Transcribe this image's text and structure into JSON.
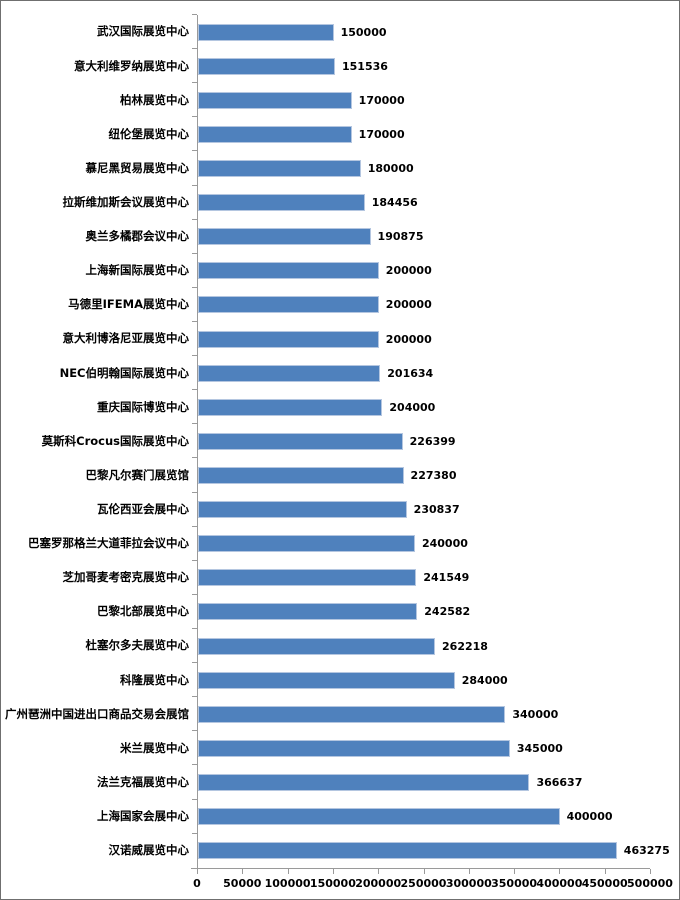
{
  "chart_data": {
    "type": "bar",
    "orientation": "horizontal",
    "title": "",
    "xlabel": "",
    "ylabel": "",
    "xlim": [
      0,
      500000
    ],
    "grid": false,
    "legend": false,
    "bar_color": "#4f81bd",
    "bar_border_color": "#b4c6e0",
    "axis_color": "#9a9a9a",
    "categories": [
      "武汉国际展览中心",
      "意大利维罗纳展览中心",
      "柏林展览中心",
      "纽伦堡展览中心",
      "慕尼黑贸易展览中心",
      "拉斯维加斯会议展览中心",
      "奥兰多橘郡会议中心",
      "上海新国际展览中心",
      "马德里IFEMA展览中心",
      "意大利博洛尼亚展览中心",
      "NEC伯明翰国际展览中心",
      "重庆国际博览中心",
      "莫斯科Crocus国际展览中心",
      "巴黎凡尔赛门展览馆",
      "瓦伦西亚会展中心",
      "巴塞罗那格兰大道菲拉会议中心",
      "芝加哥麦考密克展览中心",
      "巴黎北部展览中心",
      "杜塞尔多夫展览中心",
      "科隆展览中心",
      "广州琶洲中国进出口商品交易会展馆",
      "米兰展览中心",
      "法兰克福展览中心",
      "上海国家会展中心",
      "汉诺威展览中心"
    ],
    "values": [
      150000,
      151536,
      170000,
      170000,
      180000,
      184456,
      190875,
      200000,
      200000,
      200000,
      201634,
      204000,
      226399,
      227380,
      230837,
      240000,
      241549,
      242582,
      262218,
      284000,
      340000,
      345000,
      366637,
      400000,
      463275
    ],
    "x_ticks": [
      0,
      50000,
      100000,
      150000,
      200000,
      250000,
      300000,
      350000,
      400000,
      450000,
      500000
    ],
    "x_tick_labels": [
      "0",
      "50000",
      "100000",
      "150000",
      "200000",
      "250000",
      "300000",
      "350000",
      "400000",
      "450000",
      "500000"
    ]
  }
}
